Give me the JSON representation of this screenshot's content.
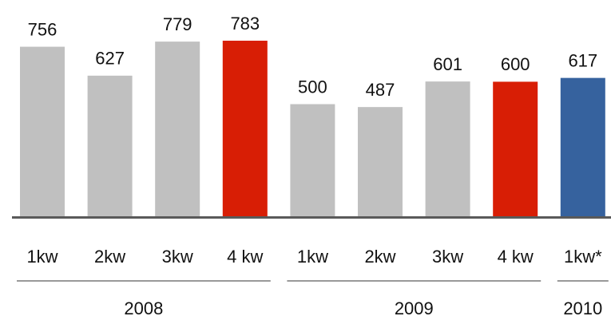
{
  "chart_data": {
    "type": "bar",
    "groups": [
      {
        "label": "2008",
        "categories": [
          "1kw",
          "2kw",
          "3kw",
          "4 kw"
        ],
        "values": [
          756,
          627,
          779,
          783
        ],
        "colors": [
          "#c0c0c0",
          "#c0c0c0",
          "#c0c0c0",
          "#d81e05"
        ]
      },
      {
        "label": "2009",
        "categories": [
          "1kw",
          "2kw",
          "3kw",
          "4 kw"
        ],
        "values": [
          500,
          487,
          601,
          600
        ],
        "colors": [
          "#c0c0c0",
          "#c0c0c0",
          "#c0c0c0",
          "#d81e05"
        ]
      },
      {
        "label": "2010",
        "categories": [
          "1kw*"
        ],
        "values": [
          617
        ],
        "colors": [
          "#36629e"
        ]
      }
    ]
  }
}
